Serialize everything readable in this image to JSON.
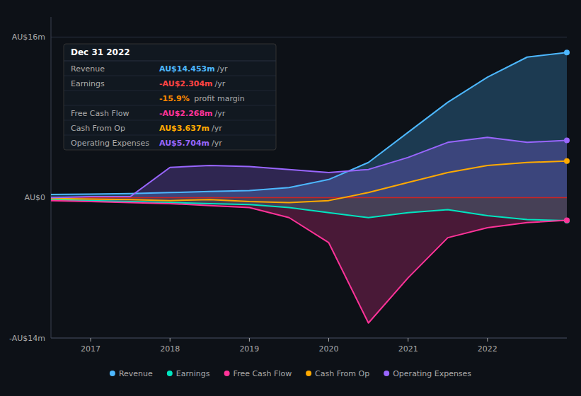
{
  "chart_data": {
    "type": "line",
    "x": [
      2016.5,
      2017.0,
      2017.5,
      2018.0,
      2018.5,
      2019.0,
      2019.5,
      2020.0,
      2020.5,
      2021.0,
      2021.5,
      2022.0,
      2022.5,
      2023.0
    ],
    "xlim": [
      2016.5,
      2023
    ],
    "xticks": [
      2017,
      2018,
      2019,
      2020,
      2021,
      2022
    ],
    "ylim": [
      -14,
      18
    ],
    "yticks": [
      {
        "value": 16,
        "label": "AU$16m"
      },
      {
        "value": 0,
        "label": "AU$0"
      },
      {
        "value": -14,
        "label": "-AU$14m"
      }
    ],
    "grid": true,
    "legend": "bottom",
    "series": [
      {
        "name": "Revenue",
        "type": "area",
        "color": "#4db8ff",
        "values": [
          0.3,
          0.35,
          0.4,
          0.5,
          0.6,
          0.7,
          1.0,
          1.8,
          3.5,
          6.5,
          9.5,
          12.0,
          14.0,
          14.453
        ]
      },
      {
        "name": "Earnings",
        "type": "area",
        "color": "#00e5c0",
        "values": [
          -0.2,
          -0.3,
          -0.4,
          -0.5,
          -0.6,
          -0.7,
          -1.0,
          -1.5,
          -2.0,
          -1.5,
          -1.2,
          -1.8,
          -2.2,
          -2.304
        ]
      },
      {
        "name": "Free Cash Flow",
        "type": "area",
        "color": "#ff3399",
        "values": [
          -0.3,
          -0.4,
          -0.5,
          -0.6,
          -0.8,
          -1.0,
          -2.0,
          -4.5,
          -12.5,
          -8.0,
          -4.0,
          -3.0,
          -2.5,
          -2.268
        ]
      },
      {
        "name": "Cash From Op",
        "type": "line",
        "color": "#ffaa00",
        "values": [
          -0.1,
          -0.15,
          -0.2,
          -0.3,
          -0.2,
          -0.4,
          -0.5,
          -0.3,
          0.5,
          1.5,
          2.5,
          3.2,
          3.5,
          3.637
        ]
      },
      {
        "name": "Operating Expenses",
        "type": "area",
        "color": "#9966ff",
        "values": [
          0.0,
          0.1,
          0.1,
          3.0,
          3.2,
          3.1,
          2.8,
          2.5,
          2.8,
          4.0,
          5.5,
          6.0,
          5.5,
          5.704
        ]
      }
    ],
    "annotations": [
      {
        "text": "Dec 31 2022",
        "rows": [
          {
            "label": "Revenue",
            "value": "AU$14.453m",
            "unit": "/yr",
            "color": "#4db8ff"
          },
          {
            "label": "Earnings",
            "value": "-AU$2.304m",
            "unit": "/yr",
            "color": "#ff4444"
          },
          {
            "value": "-15.9%",
            "unit": " profit margin",
            "color": "#ff8800"
          },
          {
            "label": "Free Cash Flow",
            "value": "-AU$2.268m",
            "unit": "/yr",
            "color": "#ff3399"
          },
          {
            "label": "Cash From Op",
            "value": "AU$3.637m",
            "unit": "/yr",
            "color": "#ffaa00"
          },
          {
            "label": "Operating Expenses",
            "value": "AU$5.704m",
            "unit": "/yr",
            "color": "#9966ff"
          }
        ]
      }
    ]
  }
}
